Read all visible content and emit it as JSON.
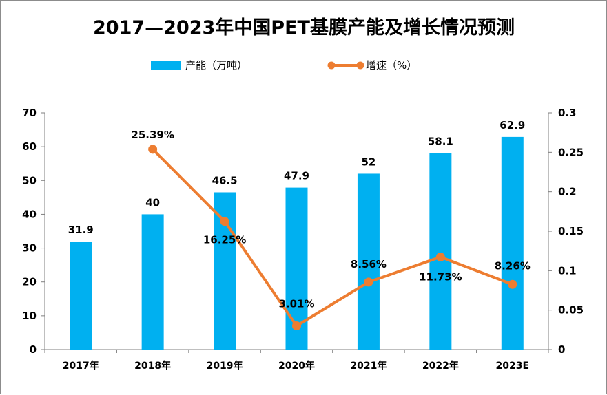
{
  "chart_data": {
    "type": "bar+line",
    "title": "2017—2023年中国PET基膜产能及增长情况预测",
    "categories": [
      "2017年",
      "2018年",
      "2019年",
      "2020年",
      "2021年",
      "2022年",
      "2023E"
    ],
    "series": [
      {
        "name": "产能（万吨）",
        "type": "bar",
        "axis": "left",
        "color": "#00b0f0",
        "values": [
          31.9,
          40,
          46.5,
          47.9,
          52,
          58.1,
          62.9
        ],
        "labels": [
          "31.9",
          "40",
          "46.5",
          "47.9",
          "52",
          "58.1",
          "62.9"
        ]
      },
      {
        "name": "增速（%）",
        "type": "line",
        "axis": "right",
        "color": "#ed7d31",
        "values": [
          null,
          0.2539,
          0.1625,
          0.0301,
          0.0856,
          0.1173,
          0.0826
        ],
        "labels": [
          "",
          "25.39%",
          "16.25%",
          "3.01%",
          "8.56%",
          "11.73%",
          "8.26%"
        ]
      }
    ],
    "y_left": {
      "min": 0,
      "max": 70,
      "ticks": [
        "0",
        "10",
        "20",
        "30",
        "40",
        "50",
        "60",
        "70"
      ]
    },
    "y_right": {
      "min": 0,
      "max": 0.3,
      "ticks": [
        "0",
        "0.05",
        "0.1",
        "0.15",
        "0.2",
        "0.25",
        "0.3"
      ]
    },
    "legend_position": "top-center",
    "grid": false
  }
}
